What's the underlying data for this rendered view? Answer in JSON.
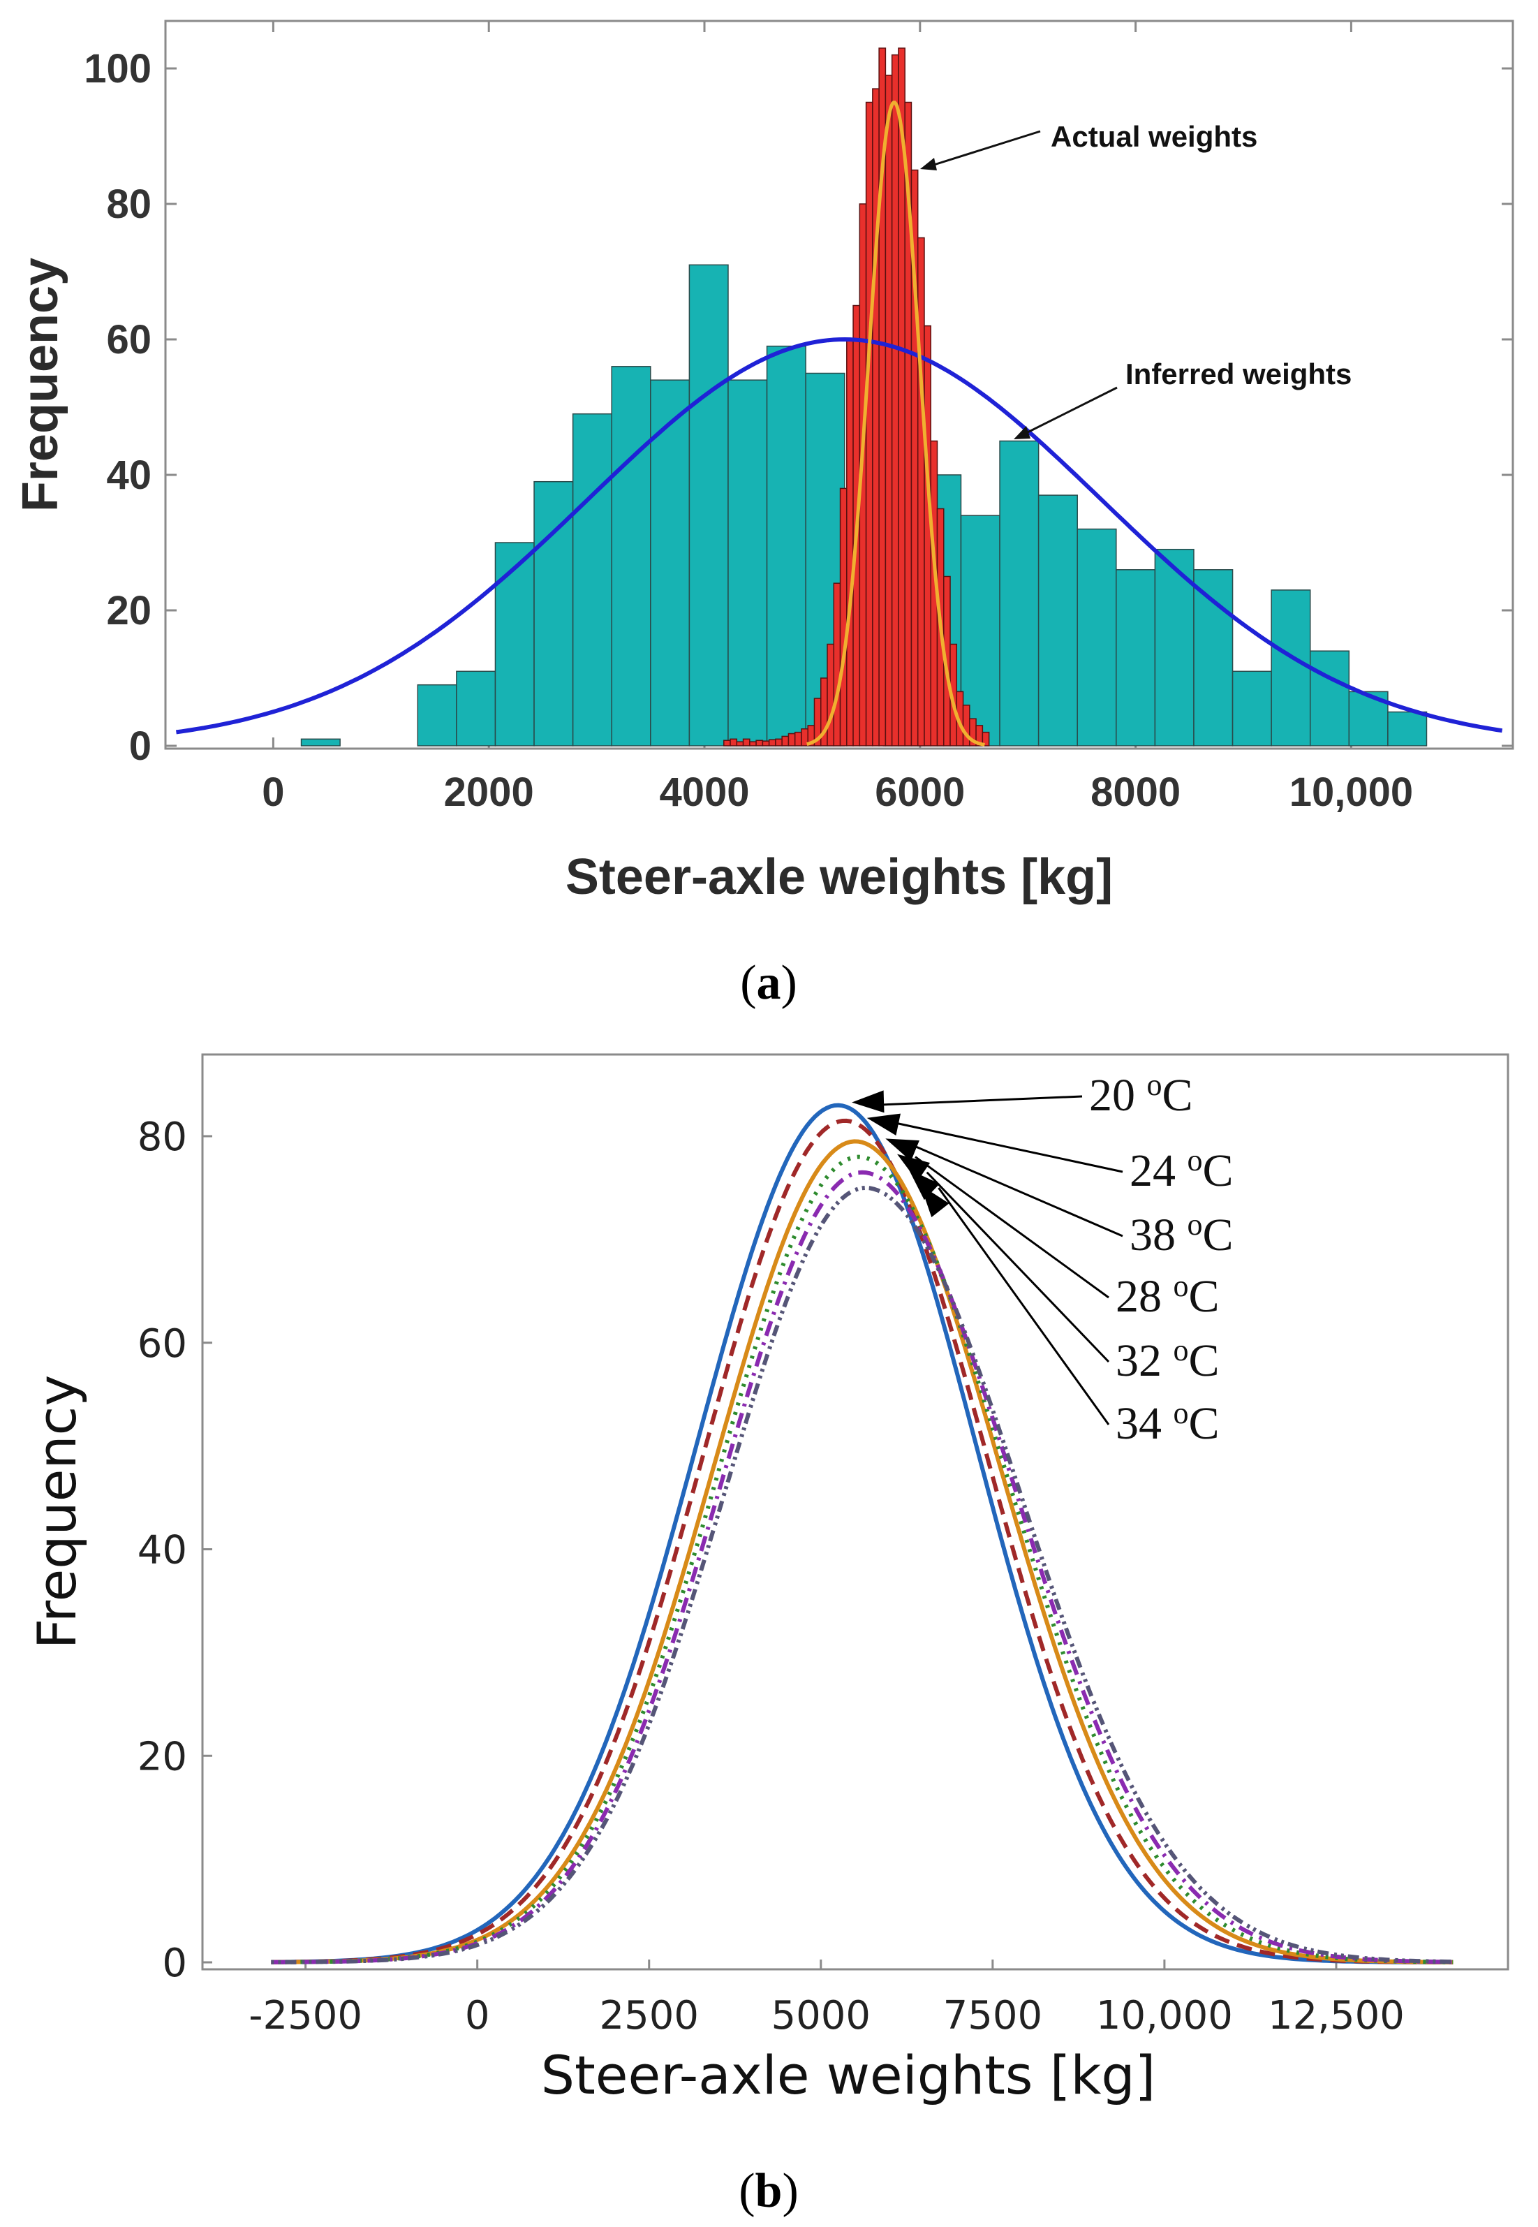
{
  "chart_data": [
    {
      "id": "a",
      "type": "bar",
      "caption_open": "(",
      "caption_letter": "a",
      "caption_close": ")",
      "xlabel": "Steer-axle weights [kg]",
      "ylabel": "Frequency",
      "xlim": [
        -1000,
        11500
      ],
      "ylim": [
        0,
        107
      ],
      "x_ticks": [
        0,
        2000,
        4000,
        6000,
        8000,
        10000
      ],
      "x_tick_labels": [
        "0",
        "2000",
        "4000",
        "6000",
        "8000",
        "10,000"
      ],
      "y_ticks": [
        0,
        20,
        40,
        60,
        80,
        100
      ],
      "y_tick_labels": [
        "0",
        "20",
        "40",
        "60",
        "80",
        "100"
      ],
      "series": [
        {
          "name": "Inferred weights",
          "color": "#17b3b3",
          "bin_width": 360,
          "bin_starts": [
            260,
            1340,
            1700,
            2060,
            2420,
            2780,
            3140,
            3500,
            3860,
            4220,
            4580,
            4940,
            5660,
            6020,
            6380,
            6740,
            7100,
            7460,
            7820,
            8180,
            8540,
            8900,
            9260,
            9620,
            9980,
            10340
          ],
          "values": [
            1,
            9,
            11,
            30,
            39,
            49,
            56,
            54,
            71,
            54,
            59,
            55,
            47,
            40,
            34,
            45,
            37,
            32,
            26,
            29,
            26,
            11,
            23,
            14,
            8,
            5
          ]
        },
        {
          "name": "Actual weights",
          "color": "#e8302c",
          "bin_width": 60,
          "bin_starts": [
            4180,
            4240,
            4300,
            4360,
            4420,
            4480,
            4540,
            4600,
            4660,
            4720,
            4780,
            4840,
            4900,
            4960,
            5020,
            5080,
            5140,
            5200,
            5260,
            5320,
            5380,
            5440,
            5500,
            5560,
            5620,
            5680,
            5740,
            5800,
            5860,
            5920,
            5980,
            6040,
            6100,
            6160,
            6220,
            6280,
            6340,
            6400,
            6460,
            6520,
            6580
          ],
          "values": [
            0.8,
            1,
            0.6,
            1,
            0.6,
            0.8,
            0.7,
            0.9,
            1,
            1.4,
            1.8,
            2,
            2.5,
            3,
            7,
            10,
            15,
            24,
            38,
            60,
            65,
            80,
            95,
            97,
            103,
            99,
            102,
            103,
            95,
            85,
            75,
            62,
            45,
            35,
            25,
            15,
            8,
            6,
            4,
            3,
            2
          ]
        }
      ],
      "fits": [
        {
          "name": "Inferred weights fit",
          "color": "#1f22d6",
          "mean": 5300,
          "sd": 2380,
          "peak": 60
        },
        {
          "name": "Actual weights fit",
          "color": "#f0b030",
          "mean": 5760,
          "sd": 235,
          "peak": 95
        }
      ],
      "annotations": [
        "Actual weights",
        "Inferred weights"
      ]
    },
    {
      "id": "b",
      "type": "line",
      "caption_open": "(",
      "caption_letter": "b",
      "caption_close": ")",
      "xlabel": "Steer-axle weights [kg]",
      "ylabel": "Frequency",
      "xlim": [
        -4000,
        15000
      ],
      "ylim": [
        0,
        88
      ],
      "x_ticks": [
        -2500,
        0,
        2500,
        5000,
        7500,
        10000,
        12500
      ],
      "x_tick_labels": [
        "-2500",
        "0",
        "2500",
        "5000",
        "7500",
        "10,000",
        "12,500"
      ],
      "y_ticks": [
        0,
        20,
        40,
        60,
        80
      ],
      "y_tick_labels": [
        "0",
        "20",
        "40",
        "60",
        "80"
      ],
      "series": [
        {
          "name": "20 °C",
          "label_num": "20 ",
          "label_deg": "o",
          "label_unit": "C",
          "color": "#2266bb",
          "dash": "",
          "peak": 83,
          "mean": 5250,
          "sd_left": 2050,
          "sd_right": 2000
        },
        {
          "name": "24 °C",
          "label_num": "24 ",
          "label_deg": "o",
          "label_unit": "C",
          "color": "#a02828",
          "dash": "22,12",
          "peak": 81.5,
          "mean": 5350,
          "sd_left": 2050,
          "sd_right": 2050
        },
        {
          "name": "38 °C",
          "label_num": "38 ",
          "label_deg": "o",
          "label_unit": "C",
          "color": "#d88a18",
          "dash": "",
          "peak": 79.5,
          "mean": 5500,
          "sd_left": 2050,
          "sd_right": 2100
        },
        {
          "name": "28 °C",
          "label_num": "28 ",
          "label_deg": "o",
          "label_unit": "C",
          "color": "#2e8b2e",
          "dash": "4,10",
          "peak": 78,
          "mean": 5550,
          "sd_left": 2050,
          "sd_right": 2150
        },
        {
          "name": "32 °C",
          "label_num": "32 ",
          "label_deg": "o",
          "label_unit": "C",
          "color": "#8a2ab0",
          "dash": "22,10,4,10",
          "peak": 76.5,
          "mean": 5600,
          "sd_left": 2050,
          "sd_right": 2200
        },
        {
          "name": "34 °C",
          "label_num": "34 ",
          "label_deg": "o",
          "label_unit": "C",
          "color": "#555577",
          "dash": "4,6,4,6,16,8",
          "peak": 75,
          "mean": 5650,
          "sd_left": 2050,
          "sd_right": 2250
        }
      ]
    }
  ]
}
